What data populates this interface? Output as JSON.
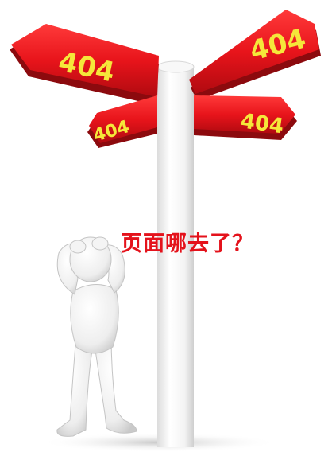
{
  "signs": [
    {
      "id": "upper-left",
      "text": "404"
    },
    {
      "id": "upper-right",
      "text": "404"
    },
    {
      "id": "lower-left",
      "text": "404"
    },
    {
      "id": "lower-right",
      "text": "404"
    }
  ],
  "message": "页面哪去了？",
  "colors": {
    "sign_red": "#e8141b",
    "sign_text": "#f5e73a",
    "message_red": "#e4121b",
    "pole": "#f6f6f6",
    "figure": "#f2f2f2"
  },
  "icons": [
    "signpost-icon",
    "confused-person-icon"
  ]
}
